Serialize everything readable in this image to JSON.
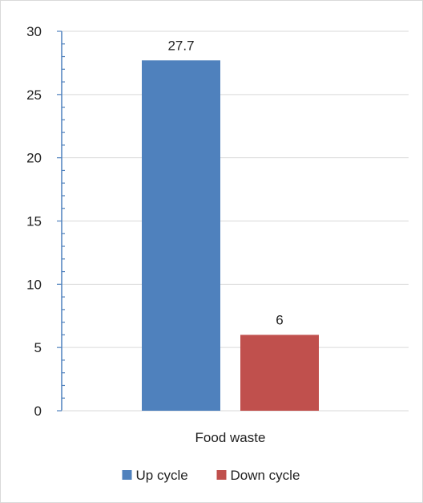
{
  "chart_data": {
    "type": "bar",
    "categories": [
      "Food waste"
    ],
    "series": [
      {
        "name": "Up cycle",
        "values": [
          27.7
        ],
        "color": "#4F81BD"
      },
      {
        "name": "Down cycle",
        "values": [
          6
        ],
        "color": "#C0504D"
      }
    ],
    "ylim": [
      0,
      30
    ],
    "yticks": [
      "0",
      "5",
      "10",
      "15",
      "20",
      "25",
      "30"
    ],
    "data_labels": [
      "27.7",
      "6"
    ],
    "grid": true,
    "legend_position": "bottom"
  }
}
